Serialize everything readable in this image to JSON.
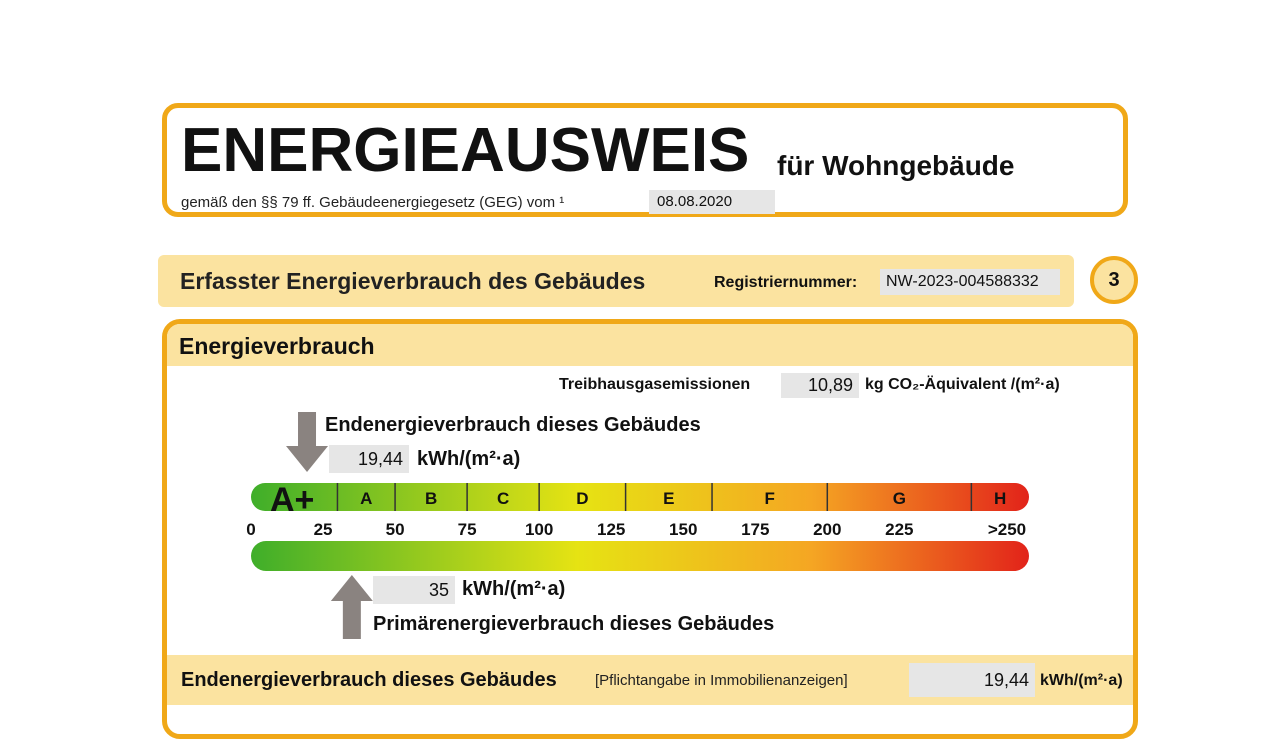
{
  "header": {
    "title": "ENERGIEAUSWEIS",
    "subtitle": "für Wohngebäude",
    "law_text": "gemäß den §§ 79 ff. Gebäudeenergiegesetz (GEG) vom ¹",
    "date": "08.08.2020"
  },
  "section": {
    "title": "Erfasster Energieverbrauch des Gebäudes",
    "registration_label": "Registriernummer:",
    "registration_number": "NW-2023-004588332",
    "page_number": "3"
  },
  "consumption": {
    "heading": "Energieverbrauch",
    "ghg_label": "Treibhausgasemissionen",
    "ghg_value": "10,89",
    "ghg_unit": "kg CO₂-Äquivalent /(m²·a)",
    "final_energy_label": "Endenergieverbrauch dieses Gebäudes",
    "final_energy_value": "19,44",
    "final_energy_numeric": 19.44,
    "final_energy_unit": "kWh/(m²·a)",
    "primary_energy_value": "35",
    "primary_energy_numeric": 35,
    "primary_energy_unit": "kWh/(m²·a)",
    "primary_energy_label": "Primärenergieverbrauch dieses Gebäudes"
  },
  "scale": {
    "classes": [
      {
        "label": "A+",
        "from": 0,
        "to": 30
      },
      {
        "label": "A",
        "from": 30,
        "to": 50
      },
      {
        "label": "B",
        "from": 50,
        "to": 75
      },
      {
        "label": "C",
        "from": 75,
        "to": 100
      },
      {
        "label": "D",
        "from": 100,
        "to": 130
      },
      {
        "label": "E",
        "from": 130,
        "to": 160
      },
      {
        "label": "F",
        "from": 160,
        "to": 200
      },
      {
        "label": "G",
        "from": 200,
        "to": 250
      },
      {
        "label": "H",
        "from": 250,
        "to": 270
      }
    ],
    "ticks": [
      "0",
      "25",
      "50",
      "75",
      "100",
      "125",
      "150",
      "175",
      "200",
      "225",
      ">250"
    ],
    "colors": {
      "start": "#3fae2a",
      "yellow": "#e6e313",
      "orange": "#f5a623",
      "end": "#e2231a",
      "arrow": "#8a8380"
    }
  },
  "footer": {
    "label": "Endenergieverbrauch dieses Gebäudes",
    "note": "[Pflichtangabe in Immobilienanzeigen]",
    "value": "19,44",
    "unit": "kWh/(m²·a)"
  }
}
